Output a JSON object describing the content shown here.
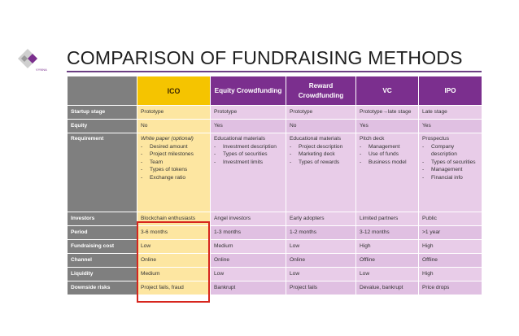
{
  "slide": {
    "title": "COMPARISON OF FUNDRAISING METHODS",
    "logo_text": "VYNNA MEDIA/PR"
  },
  "colors": {
    "accent_purple": "#7b2f8e",
    "label_gray": "#7f7f7f",
    "ico_yellow": "#f5c400",
    "ico_cell": "#fde6a1",
    "cell_pink": "#e8cce8",
    "highlight_red": "#d7261e"
  },
  "table": {
    "columns": [
      "ICO",
      "Equity Crowdfunding",
      "Reward Crowdfunding",
      "VC",
      "IPO"
    ],
    "rows": [
      {
        "label": "Startup stage",
        "cells": [
          "Prototype",
          "Prototype",
          "Prototype",
          "Prototype→late stage",
          "Late stage"
        ]
      },
      {
        "label": "Equity",
        "cells": [
          "No",
          "Yes",
          "No",
          "Yes",
          "Yes"
        ]
      },
      {
        "label": "Investors",
        "cells": [
          "Blockchain enthusiasts",
          "Angel investors",
          "Early adopters",
          "Limited partners",
          "Public"
        ]
      },
      {
        "label": "Period",
        "cells": [
          "3-6 months",
          "1-3 months",
          "1-2 months",
          "3-12 months",
          ">1 year"
        ]
      },
      {
        "label": "Fundraising cost",
        "cells": [
          "Low",
          "Medium",
          "Low",
          "High",
          "High"
        ]
      },
      {
        "label": "Channel",
        "cells": [
          "Online",
          "Online",
          "Online",
          "Offline",
          "Offline"
        ]
      },
      {
        "label": "Liquidity",
        "cells": [
          "Medium",
          "Low",
          "Low",
          "Low",
          "High"
        ]
      },
      {
        "label": "Downside risks",
        "cells": [
          "Project fails, fraud",
          "Bankrupt",
          "Project fails",
          "Devalue, bankrupt",
          "Price drops"
        ]
      }
    ],
    "requirement": {
      "label": "Requirement",
      "cells": [
        {
          "lead": "White paper (optional)",
          "items": [
            "Desired amount",
            "Project milestones",
            "Team",
            "Types of tokens",
            "Exchange ratio"
          ]
        },
        {
          "lead": "Educational materials",
          "items": [
            "Investment description",
            "Types of securities",
            "Investment limits"
          ]
        },
        {
          "lead": "Educational materials",
          "items": [
            "Project description",
            "Marketing deck",
            "Types of rewards"
          ]
        },
        {
          "lead": "Pitch deck",
          "items": [
            "Management",
            "Use of funds",
            "Business model"
          ]
        },
        {
          "lead": "Prospectus",
          "items": [
            "Company description",
            "Types of securities",
            "Management",
            "Financial info"
          ]
        }
      ]
    }
  }
}
